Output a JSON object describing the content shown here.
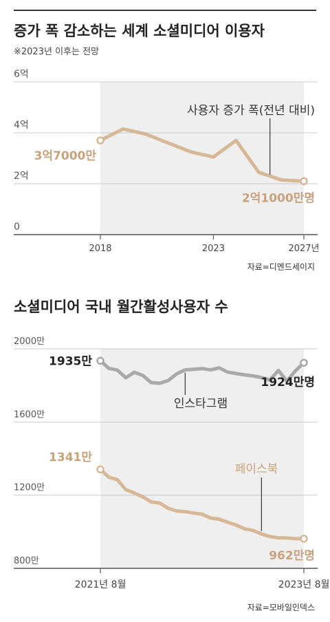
{
  "chart_data": [
    {
      "type": "line",
      "title": "증가 폭 감소하는 세계 소셜미디어 이용자",
      "subtitle": "※2023년 이후는 전망",
      "source": "자료=디멘드세이지",
      "xlim": [
        2018,
        2027
      ],
      "ylim": [
        0,
        6
      ],
      "y_ticks": [
        {
          "value": 6,
          "label": "6억"
        },
        {
          "value": 4,
          "label": "4억"
        },
        {
          "value": 2,
          "label": "2억"
        },
        {
          "value": 0,
          "label": "0"
        }
      ],
      "x_ticks": [
        {
          "value": 2018,
          "label": "2018"
        },
        {
          "value": 2023,
          "label": "2023"
        },
        {
          "value": 2027,
          "label": "2027년"
        }
      ],
      "shaded_from": 2018,
      "color": "#d7b896",
      "series": [
        {
          "name": "사용자 증가 폭(전년 대비)",
          "x": [
            2018,
            2019,
            2020,
            2021,
            2022,
            2023,
            2024,
            2025,
            2026,
            2027
          ],
          "values": [
            3.7,
            4.15,
            3.95,
            3.6,
            3.25,
            3.05,
            3.7,
            2.45,
            2.15,
            2.1
          ]
        }
      ],
      "annotations": {
        "start": "3억7000만",
        "end": "2억1000만명"
      }
    },
    {
      "type": "line",
      "title": "소셜미디어 국내 월간활성사용자 수",
      "source": "자료=모바일인덱스",
      "xlim": [
        "2021-08",
        "2023-08"
      ],
      "ylim": [
        800,
        2000
      ],
      "y_ticks": [
        {
          "value": 2000,
          "label": "2000만"
        },
        {
          "value": 1600,
          "label": "1600만"
        },
        {
          "value": 1200,
          "label": "1200만"
        },
        {
          "value": 800,
          "label": "800만"
        }
      ],
      "x_ticks": [
        {
          "value": "2021-08",
          "label": "2021년 8월"
        },
        {
          "value": "2023-08",
          "label": "2023년 8월"
        }
      ],
      "x": [
        "2021-08",
        "2021-09",
        "2021-10",
        "2021-11",
        "2021-12",
        "2022-01",
        "2022-02",
        "2022-03",
        "2022-04",
        "2022-05",
        "2022-06",
        "2022-07",
        "2022-08",
        "2022-09",
        "2022-10",
        "2022-11",
        "2022-12",
        "2023-01",
        "2023-02",
        "2023-03",
        "2023-04",
        "2023-05",
        "2023-06",
        "2023-07",
        "2023-08"
      ],
      "series": [
        {
          "name": "인스타그램",
          "color": "#a9a9a9",
          "values": [
            1935,
            1893,
            1884,
            1842,
            1872,
            1855,
            1815,
            1812,
            1827,
            1863,
            1885,
            1888,
            1892,
            1885,
            1896,
            1873,
            1865,
            1858,
            1852,
            1843,
            1830,
            1882,
            1823,
            1880,
            1924
          ],
          "start_label": "1935만",
          "end_label": "1924만명"
        },
        {
          "name": "페이스북",
          "color": "#d7b896",
          "values": [
            1341,
            1298,
            1285,
            1230,
            1212,
            1191,
            1163,
            1157,
            1128,
            1113,
            1110,
            1102,
            1096,
            1075,
            1069,
            1052,
            1037,
            1016,
            1007,
            988,
            974,
            967,
            966,
            962,
            962
          ],
          "start_label": "1341만",
          "end_label": "962만명"
        }
      ]
    }
  ]
}
